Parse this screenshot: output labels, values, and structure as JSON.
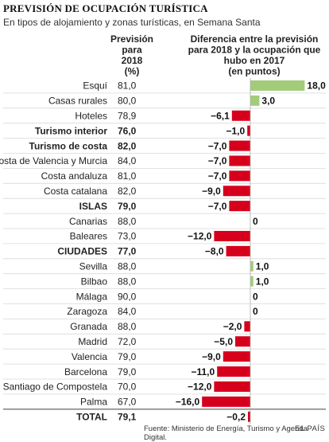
{
  "title": "PREVISIÓN DE OCUPACIÓN TURÍSTICA",
  "subtitle": "En tipos de alojamiento y zonas turísticas, en Semana Santa",
  "header_prevision": [
    "Previsión",
    "para",
    "2018",
    "(%)"
  ],
  "header_diferencia": [
    "Diferencia entre la previsión",
    "para 2018 y la ocupación que",
    "hubo en 2017",
    "(en puntos)"
  ],
  "source": "Fuente: Ministerio de Energía, Turismo y Agenda Digital.",
  "brand": "EL PAÍS",
  "colors": {
    "positive": "#a3cc7a",
    "negative": "#d6001c",
    "zero_line": "#b0b0b0",
    "row_line": "#d8d8d8",
    "total_line": "#555555"
  },
  "chart_data": {
    "type": "bar",
    "orientation": "horizontal",
    "categories": [
      "Esquí",
      "Casas rurales",
      "Hoteles",
      "Turismo interior",
      "Turismo de costa",
      "Costa de Valencia y Murcia",
      "Costa andaluza",
      "Costa catalana",
      "ISLAS",
      "Canarias",
      "Baleares",
      "CIUDADES",
      "Sevilla",
      "Bilbao",
      "Málaga",
      "Zaragoza",
      "Granada",
      "Madrid",
      "Valencia",
      "Barcelona",
      "Santiago de Compostela",
      "Palma",
      "TOTAL"
    ],
    "bold": [
      false,
      false,
      false,
      true,
      true,
      false,
      false,
      false,
      true,
      false,
      false,
      true,
      false,
      false,
      false,
      false,
      false,
      false,
      false,
      false,
      false,
      false,
      true
    ],
    "prevision": [
      "81,0",
      "80,0",
      "78,9",
      "76,0",
      "82,0",
      "84,0",
      "81,0",
      "82,0",
      "79,0",
      "88,0",
      "73,0",
      "77,0",
      "88,0",
      "88,0",
      "90,0",
      "84,0",
      "88,0",
      "72,0",
      "79,0",
      "79,0",
      "70,0",
      "67,0",
      "79,1"
    ],
    "diferencia": [
      18.0,
      3.0,
      -6.1,
      -1.0,
      -7.0,
      -7.0,
      -7.0,
      -9.0,
      -7.0,
      0,
      -12.0,
      -8.0,
      1.0,
      1.0,
      0,
      0,
      -2.0,
      -5.0,
      -9.0,
      -11.0,
      -12.0,
      -16.0,
      -0.2
    ],
    "diferencia_labels": [
      "18,0",
      "3,0",
      "−6,1",
      "−1,0",
      "−7,0",
      "−7,0",
      "−7,0",
      "−9,0",
      "−7,0",
      "0",
      "−12,0",
      "−8,0",
      "1,0",
      "1,0",
      "0",
      "0",
      "−2,0",
      "−5,0",
      "−9,0",
      "−11,0",
      "−12,0",
      "−16,0",
      "−0,2"
    ]
  }
}
